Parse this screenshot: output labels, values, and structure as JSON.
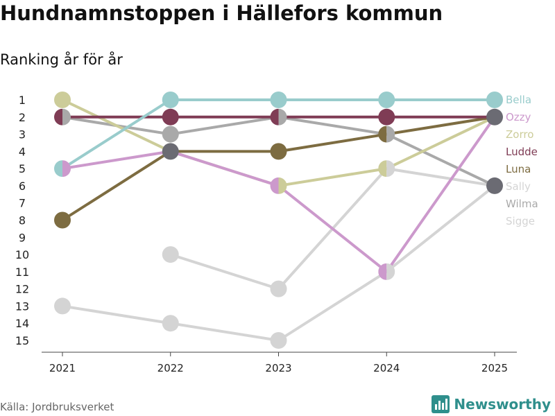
{
  "title": "Hundnamnstoppen i Hällefors kommun",
  "subtitle": "Ranking år för år",
  "source": "Källa: Jordbruksverket",
  "brand": "Newsworthy",
  "chart_data": {
    "type": "line",
    "x": [
      2021,
      2022,
      2023,
      2024,
      2025
    ],
    "ylim": [
      15,
      1
    ],
    "yticks": [
      1,
      2,
      3,
      4,
      5,
      6,
      7,
      8,
      9,
      10,
      11,
      12,
      13,
      14,
      15
    ],
    "series": [
      {
        "name": "Sally",
        "color": "#d4d4d4",
        "values": [
          null,
          10,
          12,
          5,
          6
        ]
      },
      {
        "name": "Sigge",
        "color": "#d4d4d4",
        "values": [
          13,
          14,
          15,
          11,
          6
        ]
      },
      {
        "name": "Wilma",
        "color": "#a9a9a9",
        "values": [
          2,
          3,
          2,
          3,
          6
        ]
      },
      {
        "name": "Zorro",
        "color": "#cccc99",
        "values": [
          1,
          4,
          6,
          5,
          2
        ]
      },
      {
        "name": "Luna",
        "color": "#7d6c41",
        "values": [
          8,
          4,
          4,
          3,
          2
        ]
      },
      {
        "name": "Ozzy",
        "color": "#cc99cc",
        "values": [
          5,
          4,
          6,
          11,
          2
        ]
      },
      {
        "name": "Ludde",
        "color": "#7f3c55",
        "values": [
          2,
          2,
          2,
          2,
          2
        ]
      },
      {
        "name": "Bella",
        "color": "#99cccc",
        "values": [
          5,
          1,
          1,
          1,
          1
        ]
      }
    ],
    "legend": {
      "placement": "right",
      "items": [
        {
          "name": "Bella",
          "color": "#99cccc"
        },
        {
          "name": "Ozzy",
          "color": "#cc99cc"
        },
        {
          "name": "Zorro",
          "color": "#cccc99"
        },
        {
          "name": "Ludde",
          "color": "#7f3c55"
        },
        {
          "name": "Luna",
          "color": "#7d6c41"
        },
        {
          "name": "Sally",
          "color": "#d4d4d4"
        },
        {
          "name": "Wilma",
          "color": "#a9a9a9"
        },
        {
          "name": "Sigge",
          "color": "#d4d4d4"
        }
      ]
    },
    "overlap_color": "#6b6b73"
  }
}
